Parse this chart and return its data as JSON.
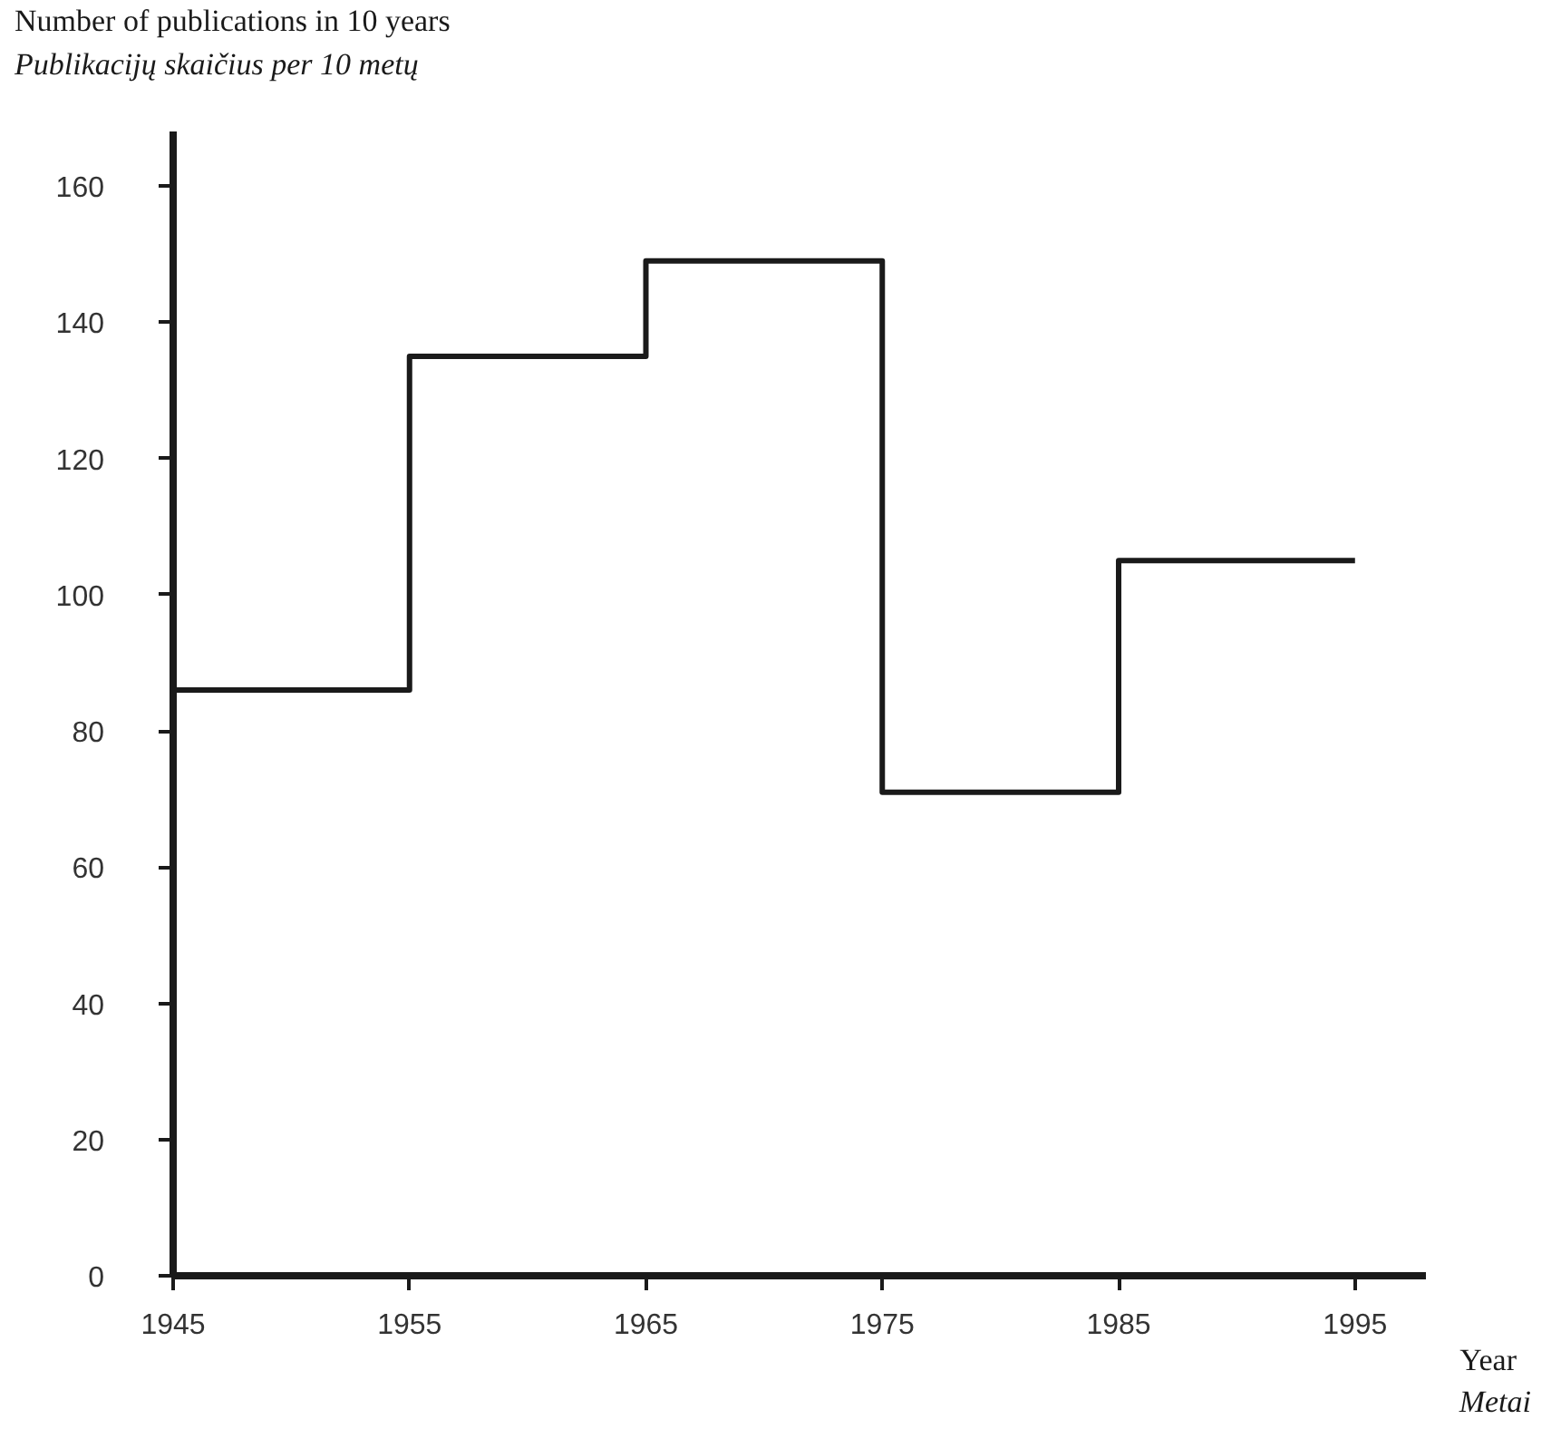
{
  "chart_data": {
    "type": "step",
    "ylabel": "Number of publications in 10 years\nPublikacijų skaičius per 10 metų",
    "xlabel": "Year\nMetai",
    "x": [
      1945,
      1955,
      1965,
      1975,
      1985,
      1995
    ],
    "series": [
      {
        "color": "#1a1a1a",
        "values": [
          86,
          135,
          149,
          71,
          105,
          105
        ]
      }
    ],
    "xlim": [
      1945,
      1998
    ],
    "xticks": [
      1945,
      1955,
      1965,
      1975,
      1985,
      1995
    ],
    "ylim": [
      0,
      168
    ],
    "yticks": [
      0,
      20,
      40,
      60,
      80,
      100,
      120,
      140,
      160
    ],
    "grid": false,
    "marker": "none",
    "line_style": "solid"
  }
}
